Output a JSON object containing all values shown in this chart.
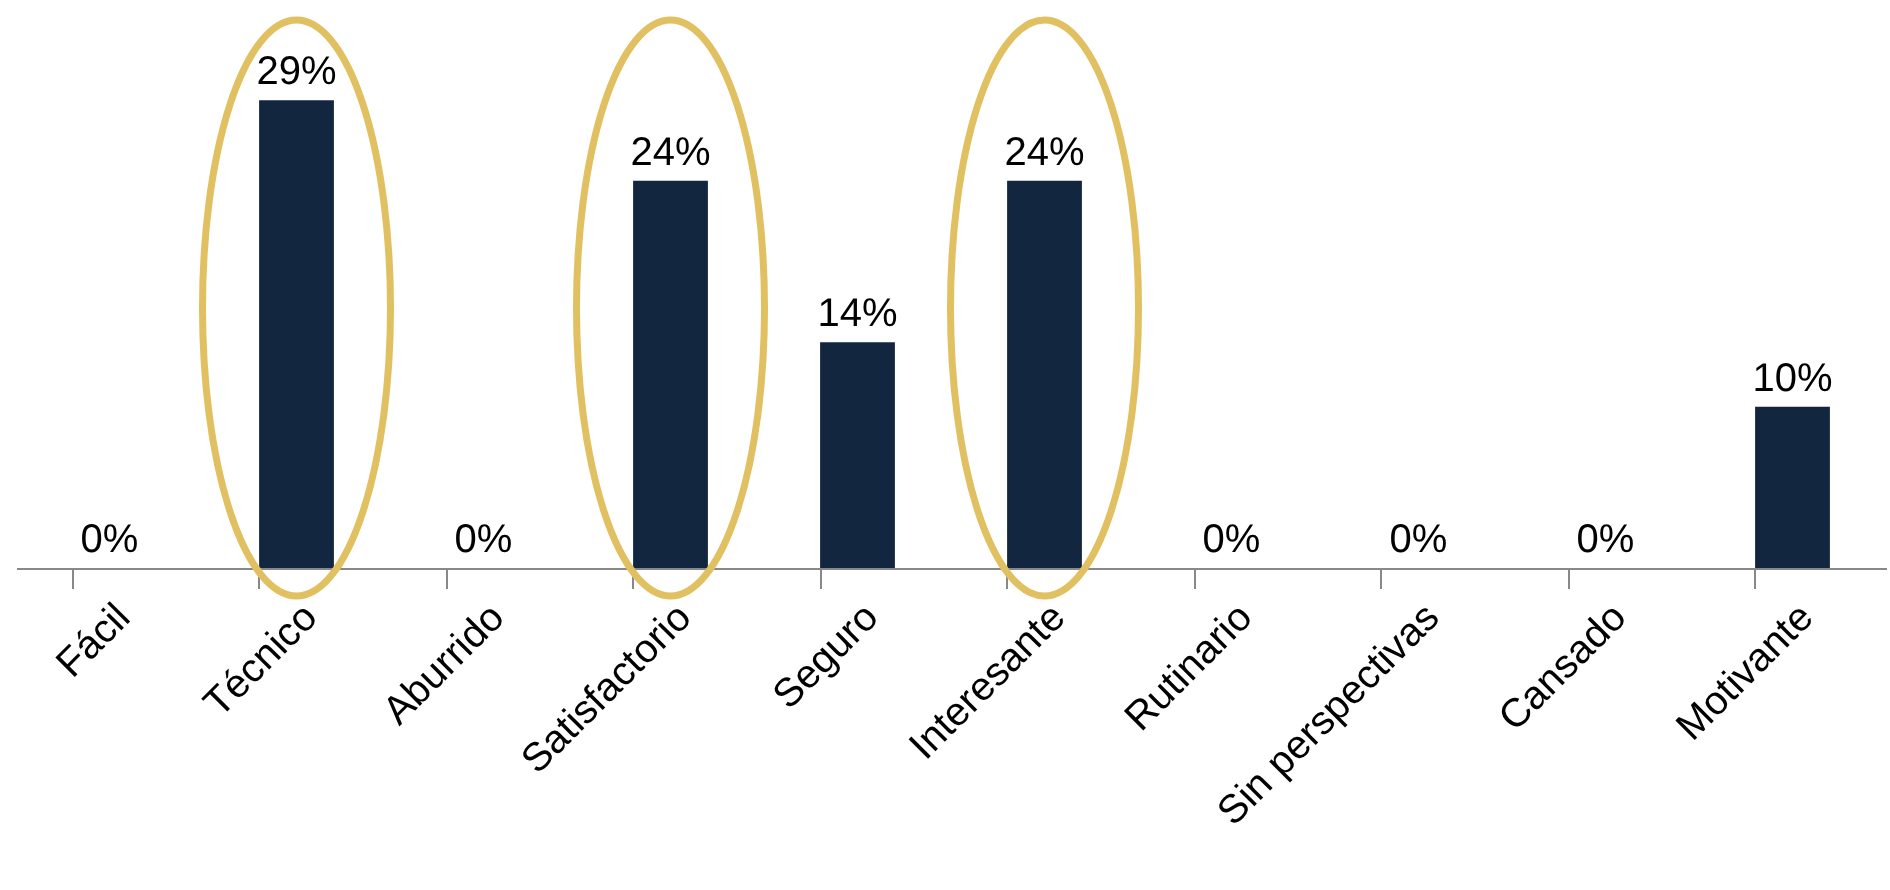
{
  "chart_data": {
    "type": "bar",
    "categories": [
      "Fácil",
      "Técnico",
      "Aburrido",
      "Satisfactorio",
      "Seguro",
      "Interesante",
      "Rutinario",
      "Sin perspectivas",
      "Cansado",
      "Motivante"
    ],
    "values": [
      0,
      29,
      0,
      24,
      14,
      24,
      0,
      0,
      0,
      10
    ],
    "value_labels": [
      "0%",
      "29%",
      "0%",
      "24%",
      "14%",
      "24%",
      "0%",
      "0%",
      "0%",
      "10%"
    ],
    "color": "#13263f",
    "grid": false
  }
}
